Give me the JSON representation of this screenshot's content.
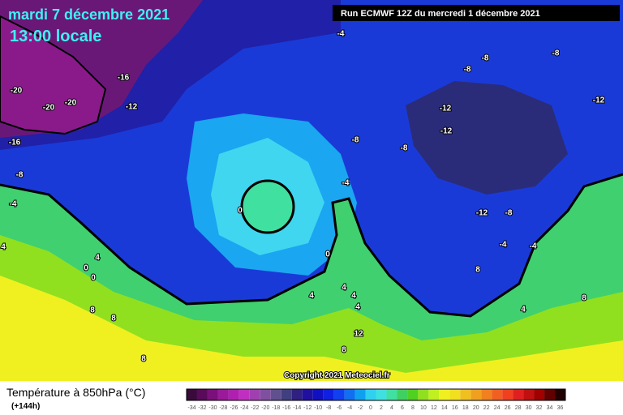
{
  "header": {
    "date": "mardi 7 décembre 2021",
    "time": "13:00 locale",
    "run": "Run ECMWF 12Z du mercredi 1 décembre 2021"
  },
  "map": {
    "contour_labels": [
      "-4",
      "-8",
      "-8",
      "-8",
      "-16",
      "-20",
      "-20",
      "-20",
      "-12",
      "-12",
      "-12",
      "-12",
      "-16",
      "-8",
      "-8",
      "-8",
      "-4",
      "-4",
      "0",
      "-12",
      "-8",
      "-4",
      "-4",
      "4",
      "0",
      "4",
      "0",
      "0",
      "8",
      "4",
      "4",
      "4",
      "4",
      "8",
      "4",
      "8",
      "8",
      "12",
      "8",
      "8"
    ],
    "copyright": "Copyright 2021 Meteociel.fr"
  },
  "legend": {
    "title": "Température à 850hPa (°C)",
    "lead": "(+144h)",
    "scale": [
      {
        "label": "-34",
        "color": "#3a0a3a"
      },
      {
        "label": "-32",
        "color": "#5a0a5a"
      },
      {
        "label": "-30",
        "color": "#7a107a"
      },
      {
        "label": "-28",
        "color": "#9a1a9a"
      },
      {
        "label": "-26",
        "color": "#b020b0"
      },
      {
        "label": "-24",
        "color": "#c030c0"
      },
      {
        "label": "-22",
        "color": "#a040b0"
      },
      {
        "label": "-20",
        "color": "#8050a0"
      },
      {
        "label": "-18",
        "color": "#605090"
      },
      {
        "label": "-16",
        "color": "#404080"
      },
      {
        "label": "-14",
        "color": "#302080"
      },
      {
        "label": "-12",
        "color": "#2010a0"
      },
      {
        "label": "-10",
        "color": "#1010c0"
      },
      {
        "label": "-8",
        "color": "#1020e0"
      },
      {
        "label": "-6",
        "color": "#1040f0"
      },
      {
        "label": "-4",
        "color": "#1070f0"
      },
      {
        "label": "-2",
        "color": "#10a0f0"
      },
      {
        "label": "0",
        "color": "#30d0f0"
      },
      {
        "label": "2",
        "color": "#40e0e0"
      },
      {
        "label": "4",
        "color": "#40e0a0"
      },
      {
        "label": "6",
        "color": "#40d060"
      },
      {
        "label": "8",
        "color": "#50d020"
      },
      {
        "label": "10",
        "color": "#90e020"
      },
      {
        "label": "12",
        "color": "#c0f020"
      },
      {
        "label": "14",
        "color": "#f0f020"
      },
      {
        "label": "16",
        "color": "#f0e020"
      },
      {
        "label": "18",
        "color": "#f0c020"
      },
      {
        "label": "20",
        "color": "#f0a020"
      },
      {
        "label": "22",
        "color": "#f08020"
      },
      {
        "label": "24",
        "color": "#f06020"
      },
      {
        "label": "26",
        "color": "#f04020"
      },
      {
        "label": "28",
        "color": "#e02020"
      },
      {
        "label": "30",
        "color": "#c01010"
      },
      {
        "label": "32",
        "color": "#a00000"
      },
      {
        "label": "34",
        "color": "#600000"
      },
      {
        "label": "36",
        "color": "#200000"
      }
    ]
  }
}
